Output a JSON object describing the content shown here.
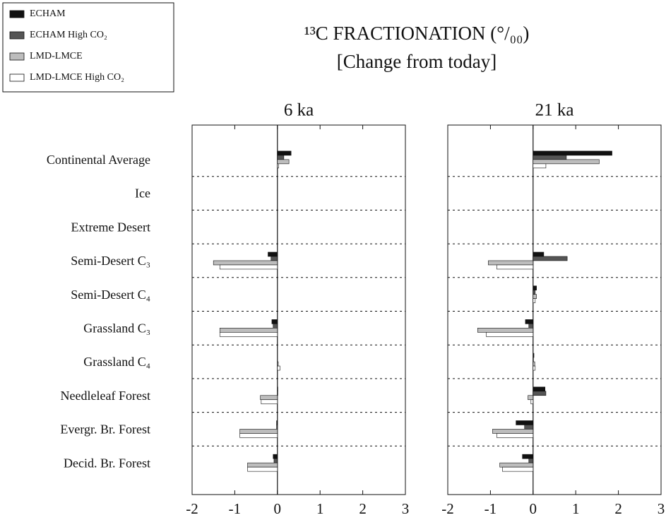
{
  "title": "¹³C FRACTIONATION (°/₀₀)",
  "subtitle": "[Change from today]",
  "chart_data": [
    {
      "type": "barh",
      "title": "6 ka",
      "categories": [
        "Continental Average",
        "Ice",
        "Extreme Desert",
        "Semi-Desert C₃",
        "Semi-Desert C₄",
        "Grassland C₃",
        "Grassland C₄",
        "Needleleaf Forest",
        "Evergr. Br. Forest",
        "Decid. Br. Forest"
      ],
      "series": [
        {
          "name": "ECHAM",
          "color": "#111111",
          "values": [
            0.32,
            0,
            0,
            -0.22,
            0,
            -0.13,
            0,
            0.01,
            -0.02,
            -0.1
          ]
        },
        {
          "name": "ECHAM High CO₂",
          "color": "#555555",
          "values": [
            0.15,
            0,
            0,
            -0.15,
            0,
            -0.1,
            0,
            0.01,
            -0.02,
            -0.08
          ]
        },
        {
          "name": "LMD-LMCE",
          "color": "#bdbdbd",
          "values": [
            0.27,
            0,
            0,
            -1.5,
            0,
            -1.35,
            0.02,
            -0.4,
            -0.88,
            -0.7
          ]
        },
        {
          "name": "LMD-LMCE High CO₂",
          "color": "#ffffff",
          "values": [
            0.03,
            0,
            0,
            -1.35,
            0,
            -1.35,
            0.06,
            -0.38,
            -0.88,
            -0.7
          ]
        }
      ],
      "xlim": [
        -2,
        3
      ],
      "xticks": [
        -2,
        -1,
        0,
        1,
        2,
        3
      ]
    },
    {
      "type": "barh",
      "title": "21 ka",
      "series": [
        {
          "color": "#111111",
          "values": [
            1.85,
            0,
            0,
            0.25,
            0.08,
            -0.18,
            0.02,
            0.28,
            -0.4,
            -0.25
          ]
        },
        {
          "color": "#555555",
          "values": [
            0.78,
            0,
            0,
            0.8,
            0.05,
            -0.1,
            0.01,
            0.3,
            -0.2,
            -0.1
          ]
        },
        {
          "color": "#bdbdbd",
          "values": [
            1.55,
            0,
            0,
            -1.05,
            0.08,
            -1.3,
            0.04,
            -0.12,
            -0.95,
            -0.78
          ]
        },
        {
          "color": "#ffffff",
          "values": [
            0.3,
            0,
            0,
            -0.85,
            0.05,
            -1.1,
            0.05,
            -0.05,
            -0.85,
            -0.72
          ]
        }
      ],
      "xlim": [
        -2,
        3
      ],
      "xticks": [
        -2,
        -1,
        0,
        1,
        2,
        3
      ]
    }
  ]
}
